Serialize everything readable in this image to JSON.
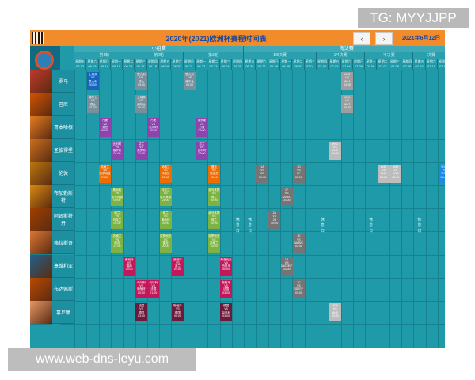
{
  "header": {
    "title": "2020年(2021)欧洲杯赛程时间表",
    "prev": "‹",
    "next": "›",
    "date": "2021年6月12日"
  },
  "logo": {
    "text": "EURO2020"
  },
  "stages": [
    {
      "label": "小组赛"
    },
    {
      "label": "淘汰赛"
    }
  ],
  "rounds": [
    {
      "label": "第1轮"
    },
    {
      "label": "第2轮"
    },
    {
      "label": "第3轮"
    },
    {
      "label": "1/8决赛"
    },
    {
      "label": "1/4决赛"
    },
    {
      "label": "半决赛"
    },
    {
      "label": "决赛"
    }
  ],
  "dates": [
    {
      "wd": "星期五",
      "d": "06.12"
    },
    {
      "wd": "星期六",
      "d": "06.13"
    },
    {
      "wd": "星期日",
      "d": "06.14"
    },
    {
      "wd": "星期一",
      "d": "06.15"
    },
    {
      "wd": "星期二",
      "d": "06.16"
    },
    {
      "wd": "星期三",
      "d": "06.17"
    },
    {
      "wd": "星期四",
      "d": "06.18"
    },
    {
      "wd": "星期五",
      "d": "06.19"
    },
    {
      "wd": "星期六",
      "d": "06.20"
    },
    {
      "wd": "星期日",
      "d": "06.21"
    },
    {
      "wd": "星期一",
      "d": "06.22"
    },
    {
      "wd": "星期二",
      "d": "06.23"
    },
    {
      "wd": "星期三",
      "d": "06.24"
    },
    {
      "wd": "星期四",
      "d": "06.25"
    },
    {
      "wd": "星期五",
      "d": "06.26"
    },
    {
      "wd": "星期六",
      "d": "06.27"
    },
    {
      "wd": "星期日",
      "d": "06.28"
    },
    {
      "wd": "星期一",
      "d": "06.29"
    },
    {
      "wd": "星期二",
      "d": "06.30"
    },
    {
      "wd": "星期三",
      "d": "07.01"
    },
    {
      "wd": "星期四",
      "d": "07.02"
    },
    {
      "wd": "星期五",
      "d": "07.03"
    },
    {
      "wd": "星期六",
      "d": "07.04"
    },
    {
      "wd": "星期日",
      "d": "07.05"
    },
    {
      "wd": "星期一",
      "d": "07.06"
    },
    {
      "wd": "星期二",
      "d": "07.07"
    },
    {
      "wd": "星期三",
      "d": "07.08"
    },
    {
      "wd": "星期四",
      "d": "07.09"
    },
    {
      "wd": "星期五",
      "d": "07.10"
    },
    {
      "wd": "星期六",
      "d": "07.11"
    },
    {
      "wd": "星期日",
      "d": "07.12"
    }
  ],
  "cities": [
    {
      "name": "罗马",
      "color": "#c0392b"
    },
    {
      "name": "巴库",
      "color": "#d35400"
    },
    {
      "name": "哥本哈根",
      "color": "#e67e22"
    },
    {
      "name": "圣彼得堡",
      "color": "#ca6f1e"
    },
    {
      "name": "伦敦",
      "color": "#b9770e"
    },
    {
      "name": "布加勒斯特",
      "color": "#d68910"
    },
    {
      "name": "阿姆斯特丹",
      "color": "#a04000"
    },
    {
      "name": "格拉斯哥",
      "color": "#dc7633"
    },
    {
      "name": "塞维利亚",
      "color": "#1f618d"
    },
    {
      "name": "布达佩斯",
      "color": "#ba4a00"
    },
    {
      "name": "慕尼黑",
      "color": "#e59866"
    }
  ],
  "matches": [
    {
      "col": 1,
      "row": 0,
      "l1": "土耳其",
      "l2": "VS",
      "l3": "意大利",
      "t": "03:00",
      "c": "#1565c0"
    },
    {
      "col": 5,
      "row": 0,
      "l1": "意大利",
      "l2": "VS",
      "l3": "瑞士",
      "t": "03:00",
      "c": "#78909c"
    },
    {
      "col": 9,
      "row": 0,
      "l1": "意大利",
      "l2": "VS",
      "l3": "威尔士",
      "t": "00:00",
      "c": "#78909c"
    },
    {
      "col": 1,
      "row": 1,
      "l1": "威尔士",
      "l2": "VS",
      "l3": "瑞士",
      "t": "21:00",
      "c": "#78909c"
    },
    {
      "col": 5,
      "row": 1,
      "l1": "土耳其",
      "l2": "VS",
      "l3": "威尔士",
      "t": "00:00",
      "c": "#78909c"
    },
    {
      "col": 2,
      "row": 2,
      "l1": "丹麦",
      "l2": "VS",
      "l3": "芬兰",
      "t": "00:00",
      "c": "#8e44ad"
    },
    {
      "col": 6,
      "row": 2,
      "l1": "丹麦",
      "l2": "VS",
      "l3": "比利时",
      "t": "00:00",
      "c": "#8e44ad"
    },
    {
      "col": 10,
      "row": 2,
      "l1": "俄罗斯",
      "l2": "VS",
      "l3": "丹麦",
      "t": "03:00",
      "c": "#8e44ad"
    },
    {
      "col": 3,
      "row": 3,
      "l1": "比利时",
      "l2": "VS",
      "l3": "俄罗斯",
      "t": "03:00",
      "c": "#8e44ad"
    },
    {
      "col": 5,
      "row": 3,
      "l1": "芬兰",
      "l2": "VS",
      "l3": "俄罗斯",
      "t": "21:00",
      "c": "#8e44ad"
    },
    {
      "col": 10,
      "row": 3,
      "l1": "芬兰",
      "l2": "VS",
      "l3": "比利时",
      "t": "03:00",
      "c": "#8e44ad"
    },
    {
      "col": 2,
      "row": 4,
      "l1": "英格兰",
      "l2": "VS",
      "l3": "克罗地亚",
      "t": "21:00",
      "c": "#ef6c00"
    },
    {
      "col": 7,
      "row": 4,
      "l1": "英格兰",
      "l2": "VS",
      "l3": "苏格兰",
      "t": "03:00",
      "c": "#ef6c00"
    },
    {
      "col": 11,
      "row": 4,
      "l1": "捷克",
      "l2": "VS",
      "l3": "英格兰",
      "t": "03:00",
      "c": "#ef6c00"
    },
    {
      "col": 15,
      "row": 4,
      "l1": "1A",
      "l2": "VS",
      "l3": "2C",
      "t": "00:00",
      "c": "#757575"
    },
    {
      "col": 18,
      "row": 4,
      "l1": "1D",
      "l2": "VS",
      "l3": "2F",
      "t": "03:00",
      "c": "#757575"
    },
    {
      "col": 3,
      "row": 5,
      "l1": "奥地利",
      "l2": "VS",
      "l3": "北马其顿",
      "t": "00:00",
      "c": "#7cb342"
    },
    {
      "col": 7,
      "row": 5,
      "l1": "乌克兰",
      "l2": "VS",
      "l3": "北马其顿",
      "t": "21:00",
      "c": "#7cb342"
    },
    {
      "col": 11,
      "row": 5,
      "l1": "北马其顿",
      "l2": "VS",
      "l3": "荷兰",
      "t": "00:00",
      "c": "#7cb342"
    },
    {
      "col": 17,
      "row": 5,
      "l1": "1F",
      "l2": "VS",
      "l3": "3A/B/C",
      "t": "03:00",
      "c": "#757575"
    },
    {
      "col": 3,
      "row": 6,
      "l1": "荷兰",
      "l2": "VS",
      "l3": "乌克兰",
      "t": "03:00",
      "c": "#7cb342"
    },
    {
      "col": 7,
      "row": 6,
      "l1": "荷兰",
      "l2": "VS",
      "l3": "奥地利",
      "t": "03:00",
      "c": "#7cb342"
    },
    {
      "col": 11,
      "row": 6,
      "l1": "北马其顿",
      "l2": "VS",
      "l3": "荷兰",
      "t": "00:00",
      "c": "#7cb342"
    },
    {
      "col": 16,
      "row": 6,
      "l1": "2A",
      "l2": "VS",
      "l3": "2B",
      "t": "00:00",
      "c": "#757575"
    },
    {
      "col": 3,
      "row": 7,
      "l1": "苏格兰",
      "l2": "VS",
      "l3": "捷克",
      "t": "21:00",
      "c": "#7cb342"
    },
    {
      "col": 7,
      "row": 7,
      "l1": "克罗地亚",
      "l2": "VS",
      "l3": "捷克",
      "t": "00:00",
      "c": "#7cb342"
    },
    {
      "col": 11,
      "row": 7,
      "l1": "克罗地亚",
      "l2": "VS",
      "l3": "苏格兰",
      "t": "03:00",
      "c": "#7cb342"
    },
    {
      "col": 18,
      "row": 7,
      "l1": "1E",
      "l2": "VS",
      "l3": "3A/B/C",
      "t": "03:00",
      "c": "#757575"
    },
    {
      "col": 4,
      "row": 8,
      "l1": "西班牙",
      "l2": "VS",
      "l3": "瑞典",
      "t": "03:00",
      "c": "#c2185b"
    },
    {
      "col": 8,
      "row": 8,
      "l1": "西班牙",
      "l2": "VS",
      "l3": "波兰",
      "t": "03:00",
      "c": "#c2185b"
    },
    {
      "col": 12,
      "row": 8,
      "l1": "斯洛伐克",
      "l2": "VS",
      "l3": "西班牙",
      "t": "00:00",
      "c": "#c2185b"
    },
    {
      "col": 17,
      "row": 8,
      "l1": "1B",
      "l2": "VS",
      "l3": "3A/D/E/F",
      "t": "03:00",
      "c": "#757575"
    },
    {
      "col": 5,
      "row": 9,
      "l1": "匈牙利",
      "l2": "VS",
      "l3": "葡萄牙",
      "t": "00:00",
      "c": "#c2185b"
    },
    {
      "col": 6,
      "row": 9,
      "l1": "匈牙利",
      "l2": "VS",
      "l3": "法国",
      "t": "21:00",
      "c": "#c2185b"
    },
    {
      "col": 12,
      "row": 9,
      "l1": "葡萄牙",
      "l2": "VS",
      "l3": "法国",
      "t": "03:00",
      "c": "#c2185b"
    },
    {
      "col": 18,
      "row": 9,
      "l1": "1C",
      "l2": "VS",
      "l3": "3D/E/F",
      "t": "03:00",
      "c": "#757575"
    },
    {
      "col": 5,
      "row": 10,
      "l1": "法国",
      "l2": "VS",
      "l3": "德国",
      "t": "03:00",
      "c": "#6d1b3a"
    },
    {
      "col": 8,
      "row": 10,
      "l1": "葡萄牙",
      "l2": "VS",
      "l3": "德国",
      "t": "00:00",
      "c": "#6d1b3a"
    },
    {
      "col": 12,
      "row": 10,
      "l1": "德国",
      "l2": "VS",
      "l3": "匈牙利",
      "t": "03:00",
      "c": "#6d1b3a"
    }
  ],
  "knockouts": [
    {
      "col": 22,
      "row": 0,
      "l1": "W43",
      "l2": "VS",
      "l3": "W44",
      "t": "03:00",
      "c": "#9e9e9e"
    },
    {
      "col": 22,
      "row": 1,
      "l1": "W41",
      "l2": "VS",
      "l3": "W42",
      "t": "00:00",
      "c": "#9e9e9e"
    },
    {
      "col": 21,
      "row": 3,
      "l1": "W41",
      "l2": "VS",
      "l3": "W42",
      "t": "00:00",
      "c": "#bdbdbd"
    },
    {
      "col": 25,
      "row": 4,
      "l1": "W45",
      "l2": "VS",
      "l3": "W46",
      "t": "03:00",
      "c": "#bdbdbd"
    },
    {
      "col": 26,
      "row": 4,
      "l1": "W47",
      "l2": "VS",
      "l3": "W48",
      "t": "03:00",
      "c": "#bdbdbd"
    },
    {
      "col": 30,
      "row": 4,
      "l1": "W49",
      "l2": "VS",
      "l3": "W50",
      "t": "03:00",
      "c": "#1e88e5"
    },
    {
      "col": 21,
      "row": 10,
      "l1": "W39",
      "l2": "VS",
      "l3": "W40",
      "t": "03:00",
      "c": "#bdbdbd"
    }
  ],
  "rest_label": "休息日",
  "watermarks": {
    "top": "TG: MYYJJPP",
    "bottom": "www.web-dns-leyu.com"
  }
}
